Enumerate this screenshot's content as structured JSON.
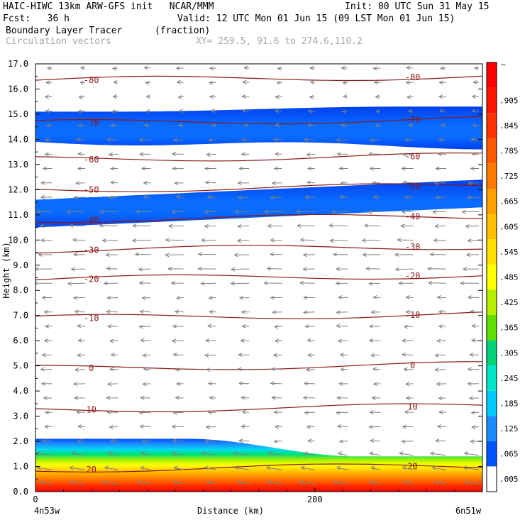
{
  "header": {
    "line1_left": "HAIC-HIWC 13km ARW-GFS init   NCAR/MMM",
    "init": "Init: 00 UTC Sun 31 May 15",
    "fcst": "Fcst:   36 h",
    "valid": "Valid: 12 UTC Mon 01 Jun 15 (09 LST Mon 01 Jun 15)",
    "field": "Boundary Layer Tracer",
    "units": "(fraction)",
    "vectors": "Circulation vectors",
    "xy": "XY= 259.5, 91.6 to 274.6,110.2"
  },
  "chart_data": {
    "type": "heatmap",
    "title": "Boundary Layer Tracer",
    "xlabel": "Distance (km)",
    "ylabel": "Height (km)",
    "xlim": [
      0,
      320
    ],
    "ylim": [
      0,
      17
    ],
    "x_ticks": [
      "0",
      "200"
    ],
    "x_endpoints": [
      "4n53w",
      "6n51w"
    ],
    "y_ticks": [
      "0.0",
      "1.0",
      "2.0",
      "3.0",
      "4.0",
      "5.0",
      "6.0",
      "7.0",
      "8.0",
      "9.0",
      "10.0",
      "11.0",
      "12.0",
      "13.0",
      "14.0",
      "15.0",
      "16.0",
      "17.0"
    ],
    "colorbar": {
      "levels": [
        ".005",
        ".065",
        ".125",
        ".185",
        ".245",
        ".305",
        ".365",
        ".425",
        ".485",
        ".545",
        ".605",
        ".665",
        ".725",
        ".785",
        ".845",
        ".905"
      ],
      "top_label": "–",
      "colors": [
        "#ffffff",
        "#0055ff",
        "#1a8cff",
        "#00ccff",
        "#00e6c8",
        "#00d278",
        "#5fe000",
        "#b4f000",
        "#ffff00",
        "#ffe000",
        "#ffc000",
        "#ffa000",
        "#ff7800",
        "#ff5a00",
        "#ff3200",
        "#ff1400",
        "#ff0000"
      ]
    },
    "temperature_contours": [
      {
        "label": "-80",
        "height_km": 16.35
      },
      {
        "label": "-70",
        "height_km": 14.65
      },
      {
        "label": "-60",
        "height_km": 13.2
      },
      {
        "label": "-50",
        "height_km": 12.0
      },
      {
        "label": "-40",
        "height_km": 10.8
      },
      {
        "label": "-30",
        "height_km": 9.6
      },
      {
        "label": "-20",
        "height_km": 8.45
      },
      {
        "label": "-10",
        "height_km": 6.9
      },
      {
        "label": "0",
        "height_km": 4.9
      },
      {
        "label": "10",
        "height_km": 3.25
      },
      {
        "label": "20",
        "height_km": 0.88
      }
    ],
    "tracer_layers": [
      {
        "name": "boundary layer",
        "bottom_km": 0.0,
        "top_left_km": 2.1,
        "top_right_km": 1.4,
        "max_value": 0.97
      },
      {
        "name": "mid layer",
        "bottom_km": 10.5,
        "top_left_km": 11.6,
        "top_right_km": 12.4,
        "max_value": 0.08
      },
      {
        "name": "upper layer",
        "bottom_km": 13.9,
        "top_left_km": 15.1,
        "top_right_km": 15.3,
        "max_value": 0.08
      }
    ],
    "vectors": "circulation vectors, easterly (leftward) flow throughout the column"
  }
}
